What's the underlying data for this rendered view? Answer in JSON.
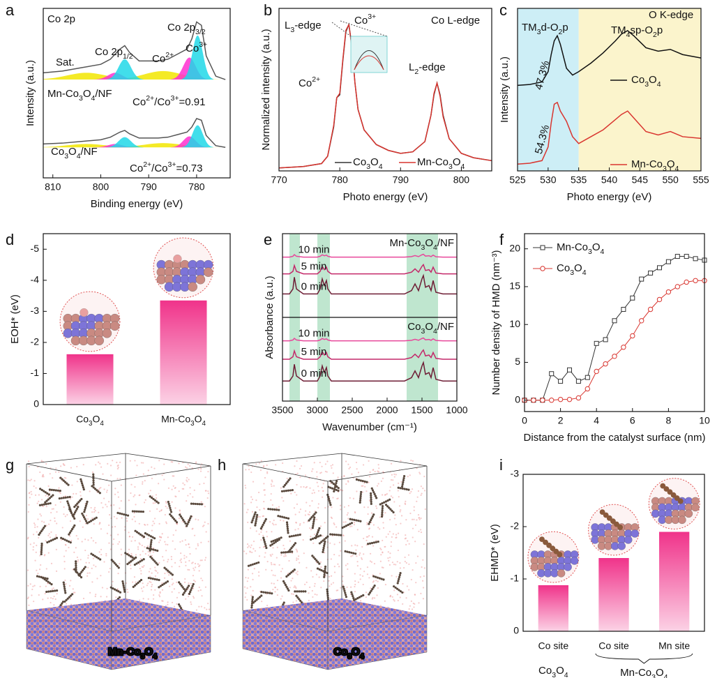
{
  "chart_data": [
    {
      "label": "a",
      "type": "line",
      "title": "Co 2p",
      "xlabel": "Binding energy (eV)",
      "ylabel": "Intensity (a.u.)",
      "xlim": [
        812,
        773
      ],
      "xticks": [
        810,
        800,
        790,
        780
      ],
      "ylim": [
        0,
        10
      ],
      "legend": "inline",
      "x": [
        812,
        808,
        804,
        800,
        798,
        796,
        795,
        794,
        792,
        790,
        788,
        786,
        784,
        782,
        781,
        780,
        779,
        778,
        776,
        774
      ],
      "series": [
        {
          "name": "Mn-Co3O4/NF",
          "color": "#555555",
          "values": [
            6.2,
            6.3,
            6.5,
            6.7,
            7.0,
            7.6,
            7.8,
            7.4,
            6.9,
            6.9,
            6.9,
            7.0,
            7.3,
            7.6,
            8.2,
            9.2,
            9.0,
            7.2,
            6.0,
            5.8
          ],
          "peaks": [
            {
              "center": 803,
              "height": 0.4,
              "width": 4,
              "color": "#f2e600"
            },
            {
              "center": 787,
              "height": 0.5,
              "width": 4,
              "color": "#f2e600"
            },
            {
              "center": 797,
              "height": 0.4,
              "width": 1.5,
              "color": "#ff2fd0"
            },
            {
              "center": 795,
              "height": 1.2,
              "width": 1.3,
              "color": "#20d8e8"
            },
            {
              "center": 781.5,
              "height": 1.3,
              "width": 1.3,
              "color": "#ff2fd0"
            },
            {
              "center": 779.8,
              "height": 2.6,
              "width": 1.1,
              "color": "#20d8e8"
            }
          ]
        },
        {
          "name": "Co3O4/NF",
          "color": "#555555",
          "values": [
            2.0,
            2.05,
            2.15,
            2.25,
            2.4,
            2.7,
            2.8,
            2.6,
            2.35,
            2.35,
            2.35,
            2.4,
            2.55,
            2.7,
            3.0,
            3.5,
            3.4,
            2.5,
            1.9,
            1.8
          ],
          "peaks": [
            {
              "center": 803,
              "height": 0.2,
              "width": 4,
              "color": "#f2e600"
            },
            {
              "center": 787,
              "height": 0.25,
              "width": 4,
              "color": "#f2e600"
            },
            {
              "center": 797,
              "height": 0.2,
              "width": 1.5,
              "color": "#ff2fd0"
            },
            {
              "center": 795,
              "height": 0.6,
              "width": 1.3,
              "color": "#20d8e8"
            },
            {
              "center": 781.5,
              "height": 0.65,
              "width": 1.3,
              "color": "#ff2fd0"
            },
            {
              "center": 779.8,
              "height": 1.3,
              "width": 1.1,
              "color": "#20d8e8"
            }
          ]
        }
      ],
      "annotations": [
        "Sat.",
        "Co 2p1/2",
        "Co 2p3/2",
        "Co2+",
        "Co3+",
        "Co2+/Co3+=0.91",
        "Co2+/Co3+=0.73"
      ]
    },
    {
      "label": "b",
      "type": "line",
      "xlabel": "Photo energy (eV)",
      "ylabel": "Normalized intensity (a.u.)",
      "xlim": [
        770,
        805
      ],
      "xticks": [
        770,
        780,
        790,
        800
      ],
      "ylim": [
        0,
        1.11
      ],
      "legend": "bottom",
      "x": [
        770,
        774,
        777,
        778,
        779,
        779.5,
        780,
        780.5,
        781,
        781.5,
        782,
        782.5,
        783,
        784,
        786,
        788,
        790,
        792,
        794,
        795,
        795.5,
        796,
        796.5,
        797,
        798,
        800,
        802,
        805
      ],
      "series": [
        {
          "name": "Co3O4",
          "color": "#333333",
          "values": [
            0.02,
            0.03,
            0.05,
            0.1,
            0.3,
            0.5,
            0.52,
            0.75,
            0.95,
            1.0,
            0.85,
            0.6,
            0.42,
            0.28,
            0.18,
            0.14,
            0.12,
            0.13,
            0.2,
            0.38,
            0.52,
            0.6,
            0.52,
            0.38,
            0.22,
            0.12,
            0.09,
            0.07
          ]
        },
        {
          "name": "Mn-Co3O4",
          "color": "#d9352f",
          "values": [
            0.02,
            0.03,
            0.05,
            0.1,
            0.31,
            0.5,
            0.53,
            0.76,
            0.96,
            1.0,
            0.84,
            0.6,
            0.42,
            0.28,
            0.18,
            0.14,
            0.12,
            0.13,
            0.2,
            0.38,
            0.53,
            0.6,
            0.51,
            0.37,
            0.22,
            0.12,
            0.09,
            0.07
          ]
        }
      ],
      "annotations": [
        "L3-edge",
        "Co3+",
        "Co L-edge",
        "L2-edge",
        "Co2+"
      ]
    },
    {
      "label": "c",
      "type": "line",
      "xlabel": "Photo energy (eV)",
      "ylabel": "Intensity (a.u.)",
      "xlim": [
        525,
        555
      ],
      "xticks": [
        525,
        530,
        535,
        540,
        545,
        550,
        555
      ],
      "ylim": [
        0,
        9.5
      ],
      "legend": "inline",
      "regions": [
        {
          "from": 525,
          "to": 535,
          "color": "#cdeef6"
        },
        {
          "from": 535,
          "to": 555,
          "color": "#fbf4cc"
        }
      ],
      "x": [
        525,
        527,
        529,
        530,
        530.5,
        531,
        531.5,
        532,
        533,
        534,
        535,
        537,
        539,
        541,
        542,
        543,
        544,
        546,
        548,
        550,
        552,
        555
      ],
      "series": [
        {
          "name": "Co3O4",
          "color": "#111111",
          "values": [
            5.0,
            5.05,
            5.2,
            5.8,
            6.8,
            7.6,
            7.9,
            7.4,
            6.0,
            5.6,
            5.8,
            6.3,
            6.9,
            7.6,
            8.0,
            8.2,
            7.9,
            7.2,
            7.0,
            7.1,
            6.8,
            6.6
          ]
        },
        {
          "name": "Mn-Co3O4",
          "color": "#d9352f",
          "values": [
            0.4,
            0.45,
            0.6,
            1.4,
            2.8,
            3.9,
            4.0,
            3.5,
            2.9,
            2.0,
            1.6,
            2.0,
            2.4,
            3.0,
            3.3,
            3.5,
            3.1,
            2.3,
            2.1,
            2.3,
            2.0,
            1.9
          ]
        }
      ],
      "annotations": [
        "TM3d-O2p",
        "TM4sp-O2p",
        "O K-edge",
        "47.3%",
        "54.3%"
      ]
    },
    {
      "label": "d",
      "type": "bar",
      "ylabel": "EOH* (eV)",
      "color": "#f0338a",
      "categories": [
        "Co3O4",
        "Mn-Co3O4"
      ],
      "values": [
        -1.62,
        -3.35
      ],
      "ylim": [
        0,
        -5.5
      ],
      "yticks": [
        0,
        -1,
        -2,
        -3,
        -4,
        -5
      ]
    },
    {
      "label": "e",
      "type": "line",
      "xlabel": "Wavenumber (cm⁻¹)",
      "ylabel": "Absorbance (a.u.)",
      "xlim": [
        3500,
        1000
      ],
      "xticks": [
        3500,
        3000,
        2500,
        2000,
        1500,
        1000
      ],
      "ylim": [
        0,
        10
      ],
      "legend": "inline",
      "bands": [
        [
          3400,
          3250
        ],
        [
          3000,
          2820
        ],
        [
          1720,
          1270
        ]
      ],
      "band_color": "#bfe6cf",
      "group_labels": [
        "Mn-Co3O4/NF",
        "Co3O4/NF"
      ],
      "x": [
        3500,
        3400,
        3350,
        3330,
        3300,
        3200,
        3000,
        2960,
        2930,
        2900,
        2870,
        2850,
        2800,
        2500,
        2000,
        1750,
        1650,
        1600,
        1550,
        1500,
        1480,
        1450,
        1400,
        1370,
        1340,
        1300,
        1200,
        1000
      ],
      "series": [
        {
          "name": "10 min",
          "color": "#e8479a",
          "values": [
            8.6,
            8.6,
            8.65,
            8.75,
            8.65,
            8.6,
            8.6,
            8.65,
            8.74,
            8.68,
            8.72,
            8.65,
            8.6,
            8.6,
            8.6,
            8.6,
            8.63,
            8.69,
            8.63,
            8.74,
            8.77,
            8.66,
            8.68,
            8.63,
            8.72,
            8.62,
            8.6,
            8.6
          ]
        },
        {
          "name": "5 min",
          "color": "#c4286a",
          "values": [
            7.6,
            7.6,
            7.75,
            8.1,
            7.75,
            7.6,
            7.6,
            7.75,
            8.05,
            7.85,
            8.0,
            7.75,
            7.6,
            7.6,
            7.6,
            7.6,
            7.7,
            7.9,
            7.7,
            8.05,
            8.15,
            7.8,
            7.85,
            7.7,
            8.0,
            7.65,
            7.6,
            7.6
          ]
        },
        {
          "name": "0 min",
          "color": "#6e1d35",
          "values": [
            6.4,
            6.4,
            6.7,
            7.4,
            6.7,
            6.4,
            6.4,
            6.7,
            7.3,
            6.9,
            7.2,
            6.7,
            6.4,
            6.4,
            6.4,
            6.4,
            6.6,
            7.0,
            6.6,
            7.3,
            7.5,
            6.8,
            6.9,
            6.6,
            7.2,
            6.5,
            6.4,
            6.4
          ]
        },
        {
          "name": "10 min",
          "color": "#e8479a",
          "values": [
            3.6,
            3.6,
            3.65,
            3.75,
            3.65,
            3.6,
            3.6,
            3.65,
            3.74,
            3.68,
            3.72,
            3.65,
            3.6,
            3.6,
            3.6,
            3.6,
            3.63,
            3.69,
            3.63,
            3.74,
            3.77,
            3.66,
            3.68,
            3.63,
            3.72,
            3.62,
            3.6,
            3.6
          ]
        },
        {
          "name": "5 min",
          "color": "#c4286a",
          "values": [
            2.5,
            2.5,
            2.65,
            3.0,
            2.65,
            2.5,
            2.5,
            2.65,
            2.95,
            2.75,
            2.9,
            2.65,
            2.5,
            2.5,
            2.5,
            2.5,
            2.6,
            2.8,
            2.6,
            2.95,
            3.05,
            2.7,
            2.75,
            2.6,
            2.9,
            2.55,
            2.5,
            2.5
          ]
        },
        {
          "name": "0 min",
          "color": "#6e1d35",
          "values": [
            1.2,
            1.2,
            1.5,
            2.2,
            1.5,
            1.2,
            1.2,
            1.5,
            2.1,
            1.7,
            2.0,
            1.5,
            1.2,
            1.2,
            1.2,
            1.2,
            1.4,
            1.8,
            1.4,
            2.1,
            2.3,
            1.6,
            1.7,
            1.4,
            2.0,
            1.3,
            1.2,
            1.2
          ]
        }
      ]
    },
    {
      "label": "f",
      "type": "line",
      "xlabel": "Distance from the catalyst surface (nm)",
      "ylabel": "Number density of HMD (nm⁻³)",
      "xlim": [
        0,
        10
      ],
      "xticks": [
        0,
        2,
        4,
        6,
        8,
        10
      ],
      "ylim": [
        -1.5,
        22
      ],
      "yticks": [
        0,
        5,
        10,
        15,
        20
      ],
      "legend": "upper-left",
      "x": [
        0,
        0.5,
        1,
        1.5,
        2,
        2.5,
        3,
        3.5,
        4,
        4.5,
        5,
        5.5,
        6,
        6.5,
        7,
        7.5,
        8,
        8.5,
        9,
        9.5,
        10
      ],
      "series": [
        {
          "name": "Mn-Co3O4",
          "color": "#333333",
          "marker": "square",
          "values": [
            0,
            0,
            0,
            3.5,
            2.5,
            4,
            2.5,
            3,
            7.5,
            8,
            10.5,
            12,
            13.5,
            16,
            16.8,
            17.5,
            18.3,
            19,
            19,
            18.7,
            18.5
          ]
        },
        {
          "name": "Co3O4",
          "color": "#d9352f",
          "marker": "circle",
          "values": [
            0,
            0,
            0,
            0,
            0.1,
            0.1,
            0.3,
            1.5,
            3.8,
            4.8,
            5.8,
            7,
            8.5,
            10.5,
            12,
            13.3,
            14.3,
            15,
            15.6,
            15.8,
            15.8
          ]
        }
      ]
    },
    {
      "label": "i",
      "type": "bar",
      "ylabel": "EHMD* (eV)",
      "color": "#f0338a",
      "categories": [
        "Co site",
        "Co site",
        "Mn site"
      ],
      "values": [
        -0.88,
        -1.4,
        -1.9
      ],
      "group_labels": [
        "Co3O4",
        "Mn-Co3O4"
      ],
      "ylim": [
        0,
        -3
      ],
      "yticks": [
        0,
        -1,
        -2,
        -3
      ]
    }
  ],
  "figures": [
    {
      "label": "g",
      "caption": "Mn-Co3O4"
    },
    {
      "label": "h",
      "caption": "Co3O4"
    }
  ]
}
